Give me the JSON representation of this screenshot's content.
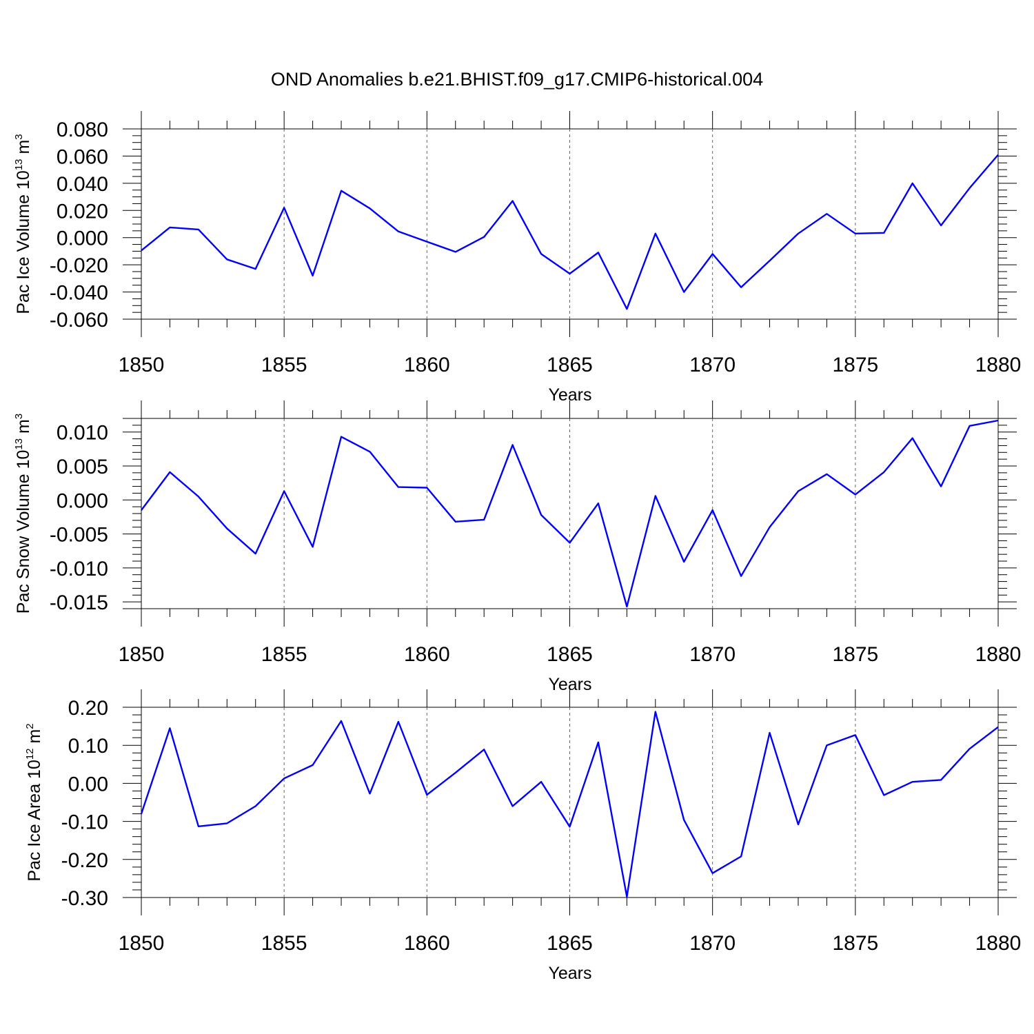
{
  "title": "OND Anomalies b.e21.BHIST.f09_g17.CMIP6-historical.004",
  "colors": {
    "series": "#0000ff",
    "axis": "#000000",
    "grid": "#666666"
  },
  "chart_data": [
    {
      "type": "line",
      "title": "OND Anomalies b.e21.BHIST.f09_g17.CMIP6-historical.004",
      "xlabel": "Years",
      "ylabel": {
        "text": "Pac Ice Volume 10",
        "sup": "13",
        "unit": " m",
        "unit_sup": "3"
      },
      "xlim": [
        1850,
        1880
      ],
      "ylim": [
        -0.06,
        0.08
      ],
      "xticks": [
        1850,
        1855,
        1860,
        1865,
        1870,
        1875,
        1880
      ],
      "xtick_labels": [
        "1850",
        "1855",
        "1860",
        "1865",
        "1870",
        "1875",
        "1880"
      ],
      "yticks": [
        -0.06,
        -0.04,
        -0.02,
        0.0,
        0.02,
        0.04,
        0.06,
        0.08
      ],
      "ytick_labels": [
        "-0.060",
        "-0.040",
        "-0.020",
        "0.000",
        "0.020",
        "0.040",
        "0.060",
        "0.080"
      ],
      "yminor_step": 0.005,
      "x": [
        1850,
        1851,
        1852,
        1853,
        1854,
        1855,
        1856,
        1857,
        1858,
        1859,
        1860,
        1861,
        1862,
        1863,
        1864,
        1865,
        1866,
        1867,
        1868,
        1869,
        1870,
        1871,
        1872,
        1873,
        1874,
        1875,
        1876,
        1877,
        1878,
        1879,
        1880
      ],
      "series": [
        {
          "name": "Pac Ice Volume",
          "values": [
            -0.0095,
            0.0075,
            0.006,
            -0.016,
            -0.023,
            0.022,
            -0.028,
            0.0345,
            0.0215,
            0.0045,
            -0.003,
            -0.0105,
            0.0005,
            0.027,
            -0.012,
            -0.0265,
            -0.011,
            -0.0525,
            0.003,
            -0.04,
            -0.012,
            -0.0365,
            -0.017,
            0.003,
            0.0175,
            0.003,
            0.0035,
            0.04,
            0.009,
            0.0365,
            0.061
          ]
        }
      ]
    },
    {
      "type": "line",
      "xlabel": "Years",
      "ylabel": {
        "text": "Pac Snow Volume 10",
        "sup": "13",
        "unit": " m",
        "unit_sup": "3"
      },
      "xlim": [
        1850,
        1880
      ],
      "ylim": [
        -0.016,
        0.012
      ],
      "xticks": [
        1850,
        1855,
        1860,
        1865,
        1870,
        1875,
        1880
      ],
      "xtick_labels": [
        "1850",
        "1855",
        "1860",
        "1865",
        "1870",
        "1875",
        "1880"
      ],
      "yticks": [
        -0.015,
        -0.01,
        -0.005,
        0.0,
        0.005,
        0.01
      ],
      "ytick_labels": [
        "-0.015",
        "-0.010",
        "-0.005",
        "0.000",
        "0.005",
        "0.010"
      ],
      "yminor_step": 0.001,
      "x": [
        1850,
        1851,
        1852,
        1853,
        1854,
        1855,
        1856,
        1857,
        1858,
        1859,
        1860,
        1861,
        1862,
        1863,
        1864,
        1865,
        1866,
        1867,
        1868,
        1869,
        1870,
        1871,
        1872,
        1873,
        1874,
        1875,
        1876,
        1877,
        1878,
        1879,
        1880
      ],
      "series": [
        {
          "name": "Pac Snow Volume",
          "values": [
            -0.0015,
            0.0041,
            0.0005,
            -0.0042,
            -0.0079,
            0.0013,
            -0.0069,
            0.0093,
            0.0071,
            0.0019,
            0.0018,
            -0.0032,
            -0.0029,
            0.0081,
            -0.0022,
            -0.0063,
            -0.0005,
            -0.0157,
            0.0006,
            -0.0091,
            -0.0015,
            -0.0112,
            -0.004,
            0.0013,
            0.0038,
            0.0008,
            0.0041,
            0.0091,
            0.002,
            0.0109,
            0.0117
          ]
        }
      ]
    },
    {
      "type": "line",
      "xlabel": "Years",
      "ylabel": {
        "text": "Pac Ice Area 10",
        "sup": "12",
        "unit": " m",
        "unit_sup": "2"
      },
      "xlim": [
        1850,
        1880
      ],
      "ylim": [
        -0.3,
        0.2
      ],
      "xticks": [
        1850,
        1855,
        1860,
        1865,
        1870,
        1875,
        1880
      ],
      "xtick_labels": [
        "1850",
        "1855",
        "1860",
        "1865",
        "1870",
        "1875",
        "1880"
      ],
      "yticks": [
        -0.3,
        -0.2,
        -0.1,
        0.0,
        0.1,
        0.2
      ],
      "ytick_labels": [
        "-0.30",
        "-0.20",
        "-0.10",
        "0.00",
        "0.10",
        "0.20"
      ],
      "yminor_step": 0.02,
      "x": [
        1850,
        1851,
        1852,
        1853,
        1854,
        1855,
        1856,
        1857,
        1858,
        1859,
        1860,
        1861,
        1862,
        1863,
        1864,
        1865,
        1866,
        1867,
        1868,
        1869,
        1870,
        1871,
        1872,
        1873,
        1874,
        1875,
        1876,
        1877,
        1878,
        1879,
        1880
      ],
      "series": [
        {
          "name": "Pac Ice Area",
          "values": [
            -0.08,
            0.145,
            -0.113,
            -0.105,
            -0.06,
            0.013,
            0.048,
            0.164,
            -0.027,
            0.162,
            -0.03,
            0.028,
            0.089,
            -0.06,
            0.004,
            -0.114,
            0.108,
            -0.298,
            0.188,
            -0.096,
            -0.236,
            -0.192,
            0.133,
            -0.108,
            0.1,
            0.127,
            -0.031,
            0.004,
            0.009,
            0.091,
            0.148
          ]
        }
      ]
    }
  ]
}
